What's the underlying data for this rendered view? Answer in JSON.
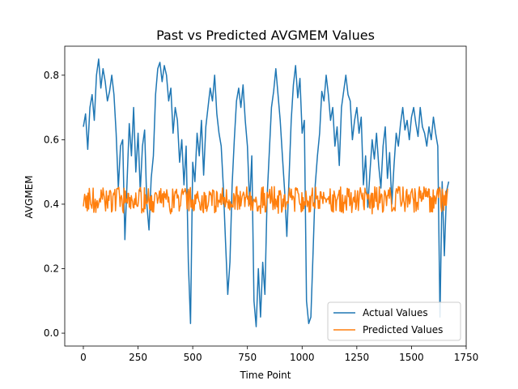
{
  "chart_data": {
    "type": "line",
    "title": "Past vs Predicted AVGMEM Values",
    "xlabel": "Time Point",
    "ylabel": "AVGMEM",
    "xlim": [
      -85,
      1750
    ],
    "ylim": [
      -0.04,
      0.89
    ],
    "x_ticks": [
      0,
      250,
      500,
      750,
      1000,
      1250,
      1500,
      1750
    ],
    "y_ticks": [
      0.0,
      0.2,
      0.4,
      0.6,
      0.8
    ],
    "y_tick_labels": [
      "0.0",
      "0.2",
      "0.4",
      "0.6",
      "0.8"
    ],
    "grid": false,
    "legend_position": "lower-right",
    "series": [
      {
        "name": "Actual Values",
        "color": "#1f77b4",
        "x": [
          0,
          10,
          20,
          30,
          40,
          50,
          60,
          70,
          80,
          90,
          100,
          110,
          120,
          130,
          140,
          150,
          160,
          170,
          180,
          190,
          200,
          210,
          220,
          230,
          240,
          250,
          260,
          270,
          280,
          290,
          300,
          310,
          320,
          330,
          340,
          350,
          360,
          370,
          380,
          390,
          400,
          410,
          420,
          430,
          440,
          450,
          460,
          470,
          480,
          490,
          500,
          510,
          520,
          530,
          540,
          550,
          560,
          570,
          580,
          590,
          600,
          610,
          620,
          630,
          640,
          650,
          660,
          670,
          680,
          690,
          700,
          710,
          720,
          730,
          740,
          750,
          760,
          770,
          780,
          790,
          800,
          810,
          820,
          830,
          840,
          850,
          860,
          870,
          880,
          890,
          900,
          910,
          920,
          930,
          940,
          950,
          960,
          970,
          980,
          990,
          1000,
          1010,
          1020,
          1030,
          1040,
          1050,
          1060,
          1070,
          1080,
          1090,
          1100,
          1110,
          1120,
          1130,
          1140,
          1150,
          1160,
          1170,
          1180,
          1190,
          1200,
          1210,
          1220,
          1230,
          1240,
          1250,
          1260,
          1270,
          1280,
          1290,
          1300,
          1310,
          1320,
          1330,
          1340,
          1350,
          1360,
          1370,
          1380,
          1390,
          1400,
          1410,
          1420,
          1430,
          1440,
          1450,
          1460,
          1470,
          1480,
          1490,
          1500,
          1510,
          1520,
          1530,
          1540,
          1550,
          1560,
          1570,
          1580,
          1590,
          1600,
          1610,
          1620,
          1630,
          1640,
          1650,
          1660,
          1670
        ],
        "values": [
          0.64,
          0.68,
          0.57,
          0.7,
          0.74,
          0.66,
          0.8,
          0.85,
          0.76,
          0.82,
          0.78,
          0.72,
          0.75,
          0.8,
          0.74,
          0.62,
          0.45,
          0.58,
          0.6,
          0.29,
          0.47,
          0.65,
          0.55,
          0.7,
          0.5,
          0.62,
          0.44,
          0.58,
          0.63,
          0.4,
          0.32,
          0.48,
          0.55,
          0.74,
          0.82,
          0.84,
          0.78,
          0.83,
          0.8,
          0.72,
          0.76,
          0.62,
          0.7,
          0.66,
          0.53,
          0.6,
          0.46,
          0.58,
          0.22,
          0.03,
          0.53,
          0.47,
          0.62,
          0.55,
          0.66,
          0.49,
          0.64,
          0.7,
          0.76,
          0.72,
          0.8,
          0.68,
          0.62,
          0.58,
          0.45,
          0.28,
          0.12,
          0.22,
          0.46,
          0.6,
          0.72,
          0.76,
          0.7,
          0.77,
          0.66,
          0.58,
          0.4,
          0.55,
          0.1,
          0.02,
          0.2,
          0.05,
          0.22,
          0.12,
          0.42,
          0.56,
          0.7,
          0.75,
          0.82,
          0.74,
          0.66,
          0.55,
          0.44,
          0.3,
          0.48,
          0.66,
          0.77,
          0.83,
          0.73,
          0.79,
          0.62,
          0.66,
          0.1,
          0.03,
          0.05,
          0.25,
          0.46,
          0.55,
          0.62,
          0.75,
          0.72,
          0.8,
          0.74,
          0.66,
          0.7,
          0.58,
          0.64,
          0.52,
          0.7,
          0.75,
          0.8,
          0.74,
          0.72,
          0.6,
          0.66,
          0.7,
          0.62,
          0.67,
          0.46,
          0.55,
          0.39,
          0.5,
          0.6,
          0.54,
          0.62,
          0.52,
          0.45,
          0.58,
          0.64,
          0.48,
          0.56,
          0.4,
          0.52,
          0.62,
          0.58,
          0.65,
          0.7,
          0.63,
          0.66,
          0.6,
          0.67,
          0.7,
          0.65,
          0.61,
          0.7,
          0.64,
          0.62,
          0.58,
          0.64,
          0.6,
          0.67,
          0.62,
          0.58,
          0.05,
          0.47,
          0.24,
          0.44,
          0.47
        ]
      },
      {
        "name": "Predicted Values",
        "color": "#ff7f0e",
        "x_start": 0,
        "x_end": 1670,
        "center": 0.415,
        "min": 0.37,
        "max": 0.45
      }
    ]
  }
}
